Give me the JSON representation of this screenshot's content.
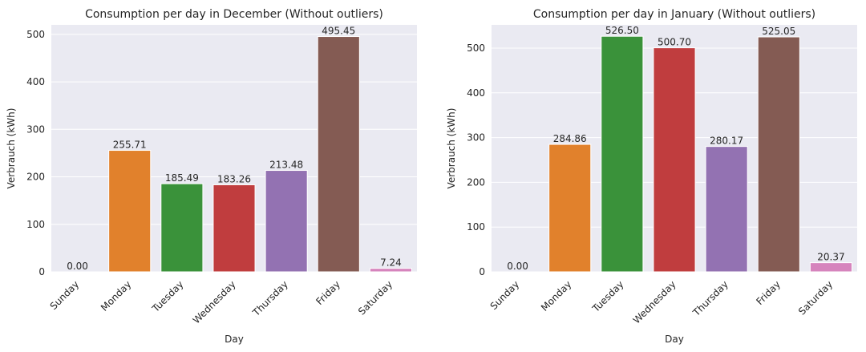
{
  "chart_data": [
    {
      "type": "bar",
      "title": "Consumption per day in December (Without outliers)",
      "xlabel": "Day",
      "ylabel": "Verbrauch (kWh)",
      "categories": [
        "Sunday",
        "Monday",
        "Tuesday",
        "Wednesday",
        "Thursday",
        "Friday",
        "Saturday"
      ],
      "values": [
        0.0,
        255.71,
        185.49,
        183.26,
        213.48,
        495.45,
        7.24
      ],
      "value_labels": [
        "0.00",
        "255.71",
        "185.49",
        "183.26",
        "213.48",
        "495.45",
        "7.24"
      ],
      "yticks": [
        0,
        100,
        200,
        300,
        400,
        500
      ],
      "ytick_labels": [
        "0",
        "100",
        "200",
        "300",
        "400",
        "500"
      ],
      "ylim": [
        0,
        520
      ],
      "grid": true,
      "colors": [
        "#3274a1",
        "#e1812c",
        "#3a923a",
        "#c03d3e",
        "#9372b2",
        "#845b53",
        "#d684bd"
      ]
    },
    {
      "type": "bar",
      "title": "Consumption per day in January (Without outliers)",
      "xlabel": "Day",
      "ylabel": "Verbrauch (kWh)",
      "categories": [
        "Sunday",
        "Monday",
        "Tuesday",
        "Wednesday",
        "Thursday",
        "Friday",
        "Saturday"
      ],
      "values": [
        0.0,
        284.86,
        526.5,
        500.7,
        280.17,
        525.05,
        20.37
      ],
      "value_labels": [
        "0.00",
        "284.86",
        "526.50",
        "500.70",
        "280.17",
        "525.05",
        "20.37"
      ],
      "yticks": [
        0,
        100,
        200,
        300,
        400,
        500
      ],
      "ytick_labels": [
        "0",
        "100",
        "200",
        "300",
        "400",
        "500"
      ],
      "ylim": [
        0,
        552
      ],
      "grid": true,
      "colors": [
        "#3274a1",
        "#e1812c",
        "#3a923a",
        "#c03d3e",
        "#9372b2",
        "#845b53",
        "#d684bd"
      ]
    }
  ],
  "style": {
    "axes_background": "#eaeaf2",
    "grid_color": "#ffffff",
    "text_color": "#262626"
  }
}
